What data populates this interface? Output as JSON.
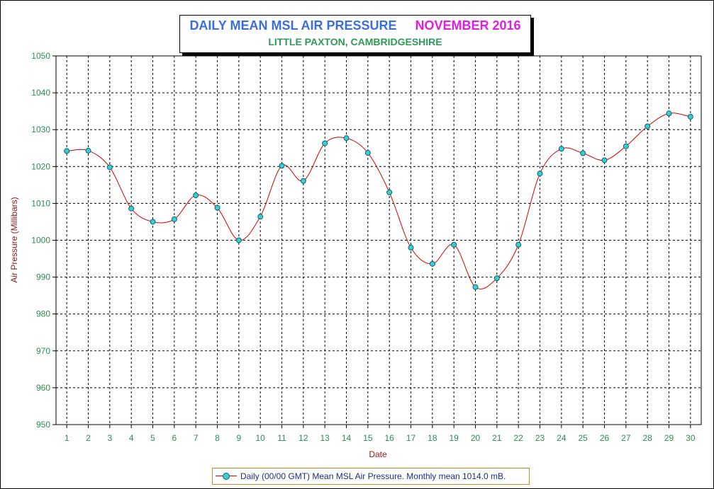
{
  "header": {
    "title": "DAILY MEAN MSL AIR PRESSURE",
    "period": "NOVEMBER 2016",
    "subtitle": "LITTLE PAXTON, CAMBRIDGESHIRE"
  },
  "legend": {
    "label": "Daily (00/00 GMT) Mean MSL Air Pressure. Monthly mean 1014.0 mB."
  },
  "colors": {
    "title": "#3a6fd8",
    "period": "#e21de0",
    "subtitle": "#2e9a56",
    "tick_labels": "#2e8b57",
    "axis_title": "#8b1a1a",
    "line": "#d40000",
    "marker": "#2fd3d6",
    "legend_text": "#1c2f7a"
  },
  "chart_data": {
    "type": "line",
    "title": "DAILY MEAN MSL AIR PRESSURE",
    "subtitle": "LITTLE PAXTON, CAMBRIDGESHIRE",
    "xlabel": "Date",
    "ylabel": "Air Pressure (Millibars)",
    "ylim": [
      950,
      1050
    ],
    "yticks": [
      950,
      960,
      970,
      980,
      990,
      1000,
      1010,
      1020,
      1030,
      1040,
      1050
    ],
    "grid": true,
    "legend_position": "bottom",
    "x": [
      1,
      2,
      3,
      4,
      5,
      6,
      7,
      8,
      9,
      10,
      11,
      12,
      13,
      14,
      15,
      16,
      17,
      18,
      19,
      20,
      21,
      22,
      23,
      24,
      25,
      26,
      27,
      28,
      29,
      30
    ],
    "series": [
      {
        "name": "Daily (00/00 GMT) Mean MSL Air Pressure. Monthly mean 1014.0 mB.",
        "values": [
          1024.2,
          1024.3,
          1019.8,
          1008.6,
          1005.0,
          1005.7,
          1012.2,
          1008.8,
          1000.0,
          1006.4,
          1020.2,
          1016.1,
          1026.3,
          1027.7,
          1023.7,
          1013.0,
          998.0,
          993.6,
          998.8,
          987.3,
          989.7,
          998.8,
          1018.1,
          1024.8,
          1023.6,
          1021.7,
          1025.5,
          1030.9,
          1034.4,
          1033.5
        ]
      }
    ]
  }
}
